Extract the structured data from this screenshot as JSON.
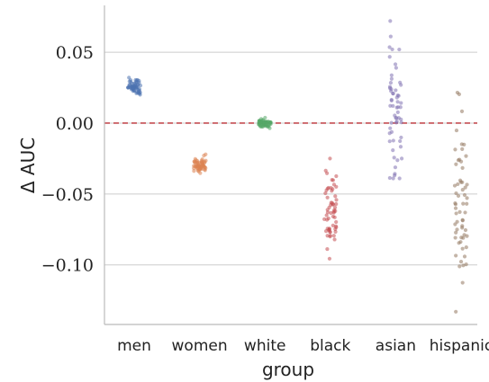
{
  "chart_data": {
    "type": "scatter",
    "xlabel": "group",
    "ylabel": "Δ AUC",
    "categories": [
      "men",
      "women",
      "white",
      "black",
      "asian",
      "hispanic"
    ],
    "ylim": [
      -0.142,
      0.083
    ],
    "yticks": [
      0.05,
      0.0,
      -0.05,
      -0.1
    ],
    "ytick_labels": [
      "0.05",
      "0.00",
      "−0.05",
      "−0.10"
    ],
    "grid": true,
    "reference_line": {
      "y": 0.0,
      "style": "dashed",
      "color": "#c44e52"
    },
    "series": [
      {
        "category": "men",
        "color": "#4c72b0",
        "center": 0.026,
        "spread": 0.003,
        "n": 60
      },
      {
        "category": "women",
        "color": "#dd8452",
        "center": -0.03,
        "spread": 0.003,
        "n": 60
      },
      {
        "category": "white",
        "color": "#55a868",
        "center": 0.0,
        "spread": 0.0015,
        "n": 60
      },
      {
        "category": "black",
        "color": "#c44e52",
        "center": -0.063,
        "spread": 0.015,
        "n": 60,
        "min": -0.096,
        "max": -0.025
      },
      {
        "category": "asian",
        "color": "#8172b3",
        "center": 0.012,
        "spread": 0.024,
        "n": 60,
        "min": -0.039,
        "max": 0.072
      },
      {
        "category": "hispanic",
        "color": "#937860",
        "center": -0.05,
        "spread": 0.035,
        "n": 60,
        "min": -0.133,
        "max": 0.037
      }
    ]
  }
}
